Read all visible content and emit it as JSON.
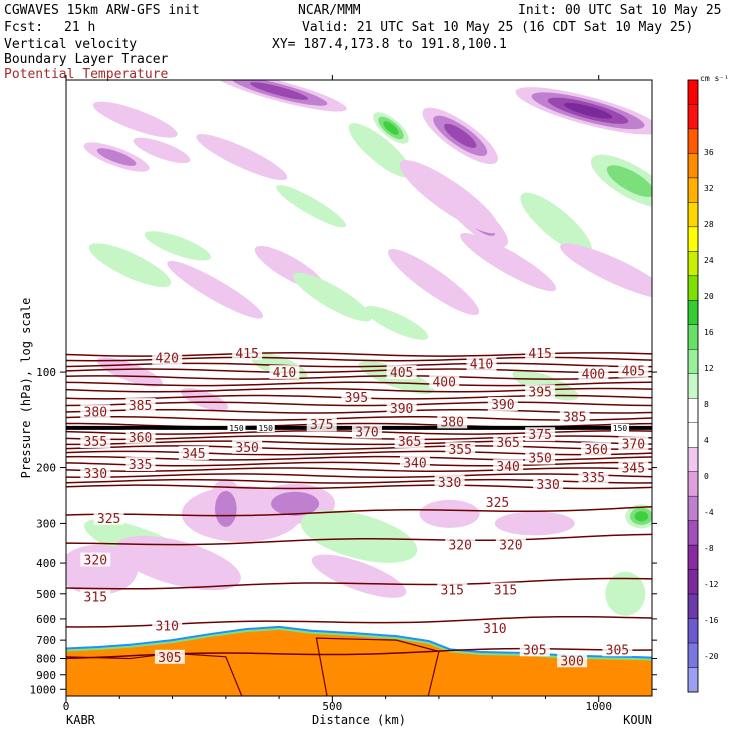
{
  "header": {
    "model": "CGWAVES 15km ARW-GFS init",
    "org": "NCAR/MMM",
    "init": "Init: 00 UTC Sat 10 May 25",
    "fcst_label": "Fcst:",
    "fcst_value": "21 h",
    "valid": "Valid: 21 UTC Sat 10 May 25 (16 CDT Sat 10 May 25)",
    "field1": "Vertical velocity",
    "field2": "Boundary Layer Tracer",
    "field3": "Potential Temperature",
    "xy": "XY= 187.4,173.8 to 191.8,100.1"
  },
  "colors": {
    "theta_contour": "#6b0000",
    "theta_label": "#8b1a1a",
    "tracer_fill": "#ff8c00",
    "tropopause": "#000000"
  },
  "chart_data": {
    "type": "heatmap",
    "xlabel": "Distance (km)",
    "ylabel": "Pressure (hPa), log scale",
    "xlim": [
      0,
      1100
    ],
    "ylim": [
      1050,
      12
    ],
    "y_scale": "log",
    "x_ticks": [
      0,
      500,
      1000
    ],
    "y_ticks": [
      100,
      200,
      300,
      400,
      500,
      600,
      700,
      800,
      900,
      1000
    ],
    "endpoints": {
      "left": "KABR",
      "right": "KOUN"
    },
    "colorbar": {
      "units": "cm s⁻¹",
      "labels": [
        "36",
        "32",
        "28",
        "24",
        "20",
        "16",
        "12",
        "8",
        "4",
        "0",
        "-4",
        "-8",
        "-12",
        "-16",
        "-20"
      ],
      "colors": [
        "#ff0000",
        "#ff1010",
        "#ff5a00",
        "#ff8c00",
        "#ffb000",
        "#ffd700",
        "#ffff00",
        "#c8f000",
        "#7fe000",
        "#33cc33",
        "#66e066",
        "#99ee99",
        "#c8f7c8",
        "#ffffff",
        "#ffffff",
        "#f0c8f0",
        "#dda0dd",
        "#c080d0",
        "#a050b8",
        "#8a2aa0",
        "#7a2a9a",
        "#6a3aaa",
        "#6a5acd",
        "#7a78e0",
        "#9aa0f0"
      ]
    },
    "theta_levels": [
      {
        "theta": 420,
        "label_x": 190,
        "p": 90
      },
      {
        "theta": 415,
        "label_x": 340,
        "p": 87
      },
      {
        "theta": 415,
        "label_x": 890,
        "p": 87
      },
      {
        "theta": 410,
        "label_x": 410,
        "p": 100
      },
      {
        "theta": 410,
        "label_x": 780,
        "p": 94
      },
      {
        "theta": 405,
        "label_x": 630,
        "p": 100
      },
      {
        "theta": 405,
        "label_x": 1065,
        "p": 99
      },
      {
        "theta": 400,
        "label_x": 710,
        "p": 107
      },
      {
        "theta": 400,
        "label_x": 990,
        "p": 101
      },
      {
        "theta": 395,
        "label_x": 545,
        "p": 120
      },
      {
        "theta": 395,
        "label_x": 890,
        "p": 115
      },
      {
        "theta": 390,
        "label_x": 630,
        "p": 130
      },
      {
        "theta": 390,
        "label_x": 820,
        "p": 126
      },
      {
        "theta": 385,
        "label_x": 140,
        "p": 127
      },
      {
        "theta": 385,
        "label_x": 955,
        "p": 138
      },
      {
        "theta": 380,
        "label_x": 55,
        "p": 133
      },
      {
        "theta": 380,
        "label_x": 725,
        "p": 143
      },
      {
        "theta": 375,
        "label_x": 480,
        "p": 146
      },
      {
        "theta": 375,
        "label_x": 890,
        "p": 157
      },
      {
        "theta": 370,
        "label_x": 565,
        "p": 154
      },
      {
        "theta": 370,
        "label_x": 1065,
        "p": 168
      },
      {
        "theta": 365,
        "label_x": 645,
        "p": 165
      },
      {
        "theta": 365,
        "label_x": 830,
        "p": 166
      },
      {
        "theta": 360,
        "label_x": 140,
        "p": 160
      },
      {
        "theta": 360,
        "label_x": 995,
        "p": 175
      },
      {
        "theta": 355,
        "label_x": 55,
        "p": 165
      },
      {
        "theta": 355,
        "label_x": 740,
        "p": 175
      },
      {
        "theta": 350,
        "label_x": 340,
        "p": 172
      },
      {
        "theta": 350,
        "label_x": 890,
        "p": 186
      },
      {
        "theta": 345,
        "label_x": 240,
        "p": 180
      },
      {
        "theta": 345,
        "label_x": 1065,
        "p": 200
      },
      {
        "theta": 340,
        "label_x": 655,
        "p": 193
      },
      {
        "theta": 340,
        "label_x": 830,
        "p": 198
      },
      {
        "theta": 335,
        "label_x": 140,
        "p": 195
      },
      {
        "theta": 335,
        "label_x": 990,
        "p": 214
      },
      {
        "theta": 330,
        "label_x": 55,
        "p": 208
      },
      {
        "theta": 330,
        "label_x": 720,
        "p": 222
      },
      {
        "theta": 330,
        "label_x": 905,
        "p": 225
      },
      {
        "theta": 325,
        "label_x": 80,
        "p": 288
      },
      {
        "theta": 325,
        "label_x": 810,
        "p": 257
      },
      {
        "theta": 320,
        "label_x": 55,
        "p": 390
      },
      {
        "theta": 320,
        "label_x": 740,
        "p": 350
      },
      {
        "theta": 320,
        "label_x": 835,
        "p": 350
      },
      {
        "theta": 315,
        "label_x": 55,
        "p": 510
      },
      {
        "theta": 315,
        "label_x": 725,
        "p": 485
      },
      {
        "theta": 315,
        "label_x": 825,
        "p": 485
      },
      {
        "theta": 310,
        "label_x": 190,
        "p": 630
      },
      {
        "theta": 310,
        "label_x": 805,
        "p": 640
      },
      {
        "theta": 305,
        "label_x": 195,
        "p": 790
      },
      {
        "theta": 305,
        "label_x": 880,
        "p": 748
      },
      {
        "theta": 305,
        "label_x": 1035,
        "p": 748
      },
      {
        "theta": 300,
        "label_x": 950,
        "p": 810
      }
    ],
    "theta_lines_p": [
      88,
      91,
      95,
      99,
      104,
      109,
      114,
      120,
      126,
      133,
      140,
      147,
      155,
      161,
      167,
      173,
      180,
      187,
      195,
      203,
      212,
      221,
      230,
      285,
      350,
      480,
      630,
      790
    ],
    "tropopause_p": 150,
    "tropopause_labels": [
      {
        "text": "150",
        "label_x": 320
      },
      {
        "text": "150",
        "label_x": 375
      },
      {
        "text": "150",
        "label_x": 1040
      }
    ],
    "tracer_top": [
      {
        "x": 0,
        "p": 760
      },
      {
        "x": 60,
        "p": 752
      },
      {
        "x": 120,
        "p": 740
      },
      {
        "x": 200,
        "p": 715
      },
      {
        "x": 270,
        "p": 685
      },
      {
        "x": 340,
        "p": 660
      },
      {
        "x": 400,
        "p": 650
      },
      {
        "x": 460,
        "p": 668
      },
      {
        "x": 540,
        "p": 680
      },
      {
        "x": 620,
        "p": 695
      },
      {
        "x": 680,
        "p": 720
      },
      {
        "x": 720,
        "p": 765
      },
      {
        "x": 780,
        "p": 780
      },
      {
        "x": 860,
        "p": 785
      },
      {
        "x": 940,
        "p": 800
      },
      {
        "x": 1000,
        "p": 805
      },
      {
        "x": 1060,
        "p": 808
      },
      {
        "x": 1100,
        "p": 812
      }
    ],
    "w_blobs": [
      {
        "x": 130,
        "p": 16,
        "rx": 45,
        "ry": 10,
        "rot": 20,
        "v": -4
      },
      {
        "x": 95,
        "p": 21,
        "rx": 35,
        "ry": 9,
        "rot": 20,
        "v": -6
      },
      {
        "x": 180,
        "p": 20,
        "rx": 30,
        "ry": 8,
        "rot": 20,
        "v": -4
      },
      {
        "x": 400,
        "p": 13,
        "rx": 70,
        "ry": 10,
        "rot": 15,
        "v": -8
      },
      {
        "x": 330,
        "p": 21,
        "rx": 50,
        "ry": 10,
        "rot": 25,
        "v": -4
      },
      {
        "x": 610,
        "p": 17,
        "rx": 22,
        "ry": 9,
        "rot": 40,
        "v": 8
      },
      {
        "x": 590,
        "p": 20,
        "rx": 40,
        "ry": 12,
        "rot": 40,
        "v": 4
      },
      {
        "x": 740,
        "p": 18,
        "rx": 45,
        "ry": 14,
        "rot": 35,
        "v": -8
      },
      {
        "x": 770,
        "p": 33,
        "rx": 40,
        "ry": 13,
        "rot": 40,
        "v": -6
      },
      {
        "x": 720,
        "p": 28,
        "rx": 60,
        "ry": 15,
        "rot": 35,
        "v": -4
      },
      {
        "x": 980,
        "p": 15,
        "rx": 75,
        "ry": 14,
        "rot": 15,
        "v": -10
      },
      {
        "x": 1060,
        "p": 25,
        "rx": 45,
        "ry": 16,
        "rot": 30,
        "v": 6
      },
      {
        "x": 920,
        "p": 34,
        "rx": 45,
        "ry": 14,
        "rot": 40,
        "v": 4
      },
      {
        "x": 460,
        "p": 30,
        "rx": 40,
        "ry": 8,
        "rot": 30,
        "v": 4
      },
      {
        "x": 120,
        "p": 46,
        "rx": 45,
        "ry": 12,
        "rot": 25,
        "v": 4
      },
      {
        "x": 210,
        "p": 40,
        "rx": 35,
        "ry": 9,
        "rot": 20,
        "v": 4
      },
      {
        "x": 280,
        "p": 55,
        "rx": 55,
        "ry": 10,
        "rot": 30,
        "v": -4
      },
      {
        "x": 420,
        "p": 47,
        "rx": 40,
        "ry": 11,
        "rot": 30,
        "v": -4
      },
      {
        "x": 500,
        "p": 58,
        "rx": 45,
        "ry": 11,
        "rot": 30,
        "v": 4
      },
      {
        "x": 690,
        "p": 52,
        "rx": 55,
        "ry": 12,
        "rot": 35,
        "v": -4
      },
      {
        "x": 830,
        "p": 45,
        "rx": 55,
        "ry": 11,
        "rot": 30,
        "v": -4
      },
      {
        "x": 1030,
        "p": 48,
        "rx": 60,
        "ry": 12,
        "rot": 25,
        "v": -4
      },
      {
        "x": 620,
        "p": 70,
        "rx": 35,
        "ry": 9,
        "rot": 25,
        "v": 4
      },
      {
        "x": 400,
        "p": 96,
        "rx": 30,
        "ry": 10,
        "rot": 20,
        "v": 4
      },
      {
        "x": 620,
        "p": 104,
        "rx": 40,
        "ry": 10,
        "rot": 20,
        "v": 4
      },
      {
        "x": 900,
        "p": 110,
        "rx": 35,
        "ry": 10,
        "rot": 20,
        "v": 4
      },
      {
        "x": 120,
        "p": 100,
        "rx": 35,
        "ry": 9,
        "rot": 20,
        "v": -4
      },
      {
        "x": 260,
        "p": 122,
        "rx": 25,
        "ry": 8,
        "rot": 20,
        "v": -4
      },
      {
        "x": 330,
        "p": 280,
        "rx": 60,
        "ry": 28,
        "rot": 0,
        "v": -4
      },
      {
        "x": 430,
        "p": 260,
        "rx": 40,
        "ry": 20,
        "rot": 0,
        "v": -6
      },
      {
        "x": 300,
        "p": 270,
        "rx": 18,
        "ry": 30,
        "rot": 0,
        "v": -6
      },
      {
        "x": 140,
        "p": 350,
        "rx": 60,
        "ry": 16,
        "rot": 20,
        "v": 4
      },
      {
        "x": 550,
        "p": 330,
        "rx": 60,
        "ry": 22,
        "rot": 15,
        "v": 4
      },
      {
        "x": 720,
        "p": 280,
        "rx": 30,
        "ry": 14,
        "rot": 0,
        "v": -4
      },
      {
        "x": 880,
        "p": 300,
        "rx": 40,
        "ry": 12,
        "rot": 0,
        "v": -4
      },
      {
        "x": 1080,
        "p": 285,
        "rx": 16,
        "ry": 12,
        "rot": 0,
        "v": 8
      },
      {
        "x": 60,
        "p": 420,
        "rx": 40,
        "ry": 25,
        "rot": 0,
        "v": -4
      },
      {
        "x": 210,
        "p": 400,
        "rx": 65,
        "ry": 22,
        "rot": 15,
        "v": -4
      },
      {
        "x": 550,
        "p": 440,
        "rx": 50,
        "ry": 14,
        "rot": 20,
        "v": -4
      },
      {
        "x": 1050,
        "p": 500,
        "rx": 20,
        "ry": 22,
        "rot": 0,
        "v": 4
      }
    ]
  }
}
